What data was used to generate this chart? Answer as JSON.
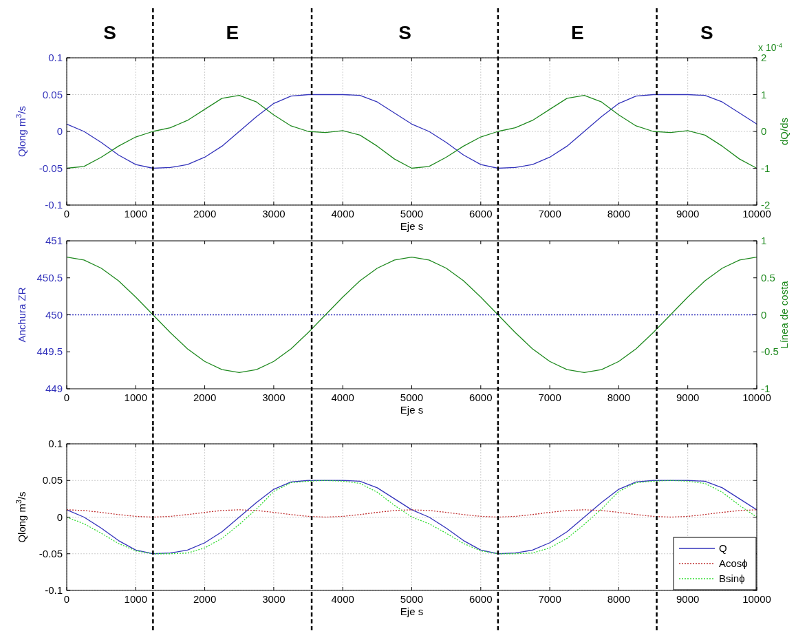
{
  "chart_data": [
    {
      "type": "line",
      "xlabel": "Eje s",
      "ylabel": "Qlong m$^{3}$/s",
      "y2label": "dQ/ds",
      "xlim": [
        0,
        10000
      ],
      "xticks": [
        0,
        1000,
        2000,
        3000,
        4000,
        5000,
        6000,
        7000,
        8000,
        9000,
        10000
      ],
      "ylim": [
        -0.1,
        0.1
      ],
      "yticks": [
        -0.1,
        -0.05,
        0,
        0.05,
        0.1
      ],
      "y2lim": [
        -2,
        2
      ],
      "y2ticks": [
        -2,
        -1,
        0,
        1,
        2
      ],
      "grid": true,
      "annotations": [
        "S",
        "E",
        "S",
        "E",
        "S",
        "x 10$^{-4}$"
      ],
      "ref_lines": [
        {
          "axis": "x",
          "value": 1250,
          "color": "#000000",
          "line_style": "dashed"
        },
        {
          "axis": "x",
          "value": 3550,
          "color": "#000000",
          "line_style": "dashed"
        },
        {
          "axis": "x",
          "value": 6250,
          "color": "#000000",
          "line_style": "dashed"
        },
        {
          "axis": "x",
          "value": 8550,
          "color": "#000000",
          "line_style": "dashed"
        }
      ],
      "x": [
        0,
        250,
        500,
        750,
        1000,
        1250,
        1500,
        1750,
        2000,
        2250,
        2500,
        2750,
        3000,
        3250,
        3500,
        3750,
        4000,
        4250,
        4500,
        4750,
        5000,
        5250,
        5500,
        5750,
        6000,
        6250,
        6500,
        6750,
        7000,
        7250,
        7500,
        7750,
        8000,
        8250,
        8500,
        8750,
        9000,
        9250,
        9500,
        9750,
        10000
      ],
      "series": [
        {
          "color": "#3333bb",
          "values": [
            0.01,
            0,
            -0.015,
            -0.032,
            -0.045,
            -0.05,
            -0.049,
            -0.045,
            -0.035,
            -0.02,
            0,
            0.02,
            0.038,
            0.048,
            0.05,
            0.05,
            0.05,
            0.049,
            0.04,
            0.025,
            0.01,
            0,
            -0.015,
            -0.032,
            -0.045,
            -0.05,
            -0.049,
            -0.045,
            -0.035,
            -0.02,
            0,
            0.02,
            0.038,
            0.048,
            0.05,
            0.05,
            0.05,
            0.049,
            0.04,
            0.025,
            0.01
          ]
        },
        {
          "color": "#208a20",
          "axis": "y2",
          "values": [
            -1,
            -0.95,
            -0.7,
            -0.4,
            -0.15,
            0,
            0.1,
            0.3,
            0.6,
            0.9,
            0.98,
            0.8,
            0.45,
            0.15,
            0,
            -0.03,
            0.02,
            -0.1,
            -0.4,
            -0.75,
            -1,
            -0.95,
            -0.7,
            -0.4,
            -0.15,
            0,
            0.1,
            0.3,
            0.6,
            0.9,
            0.98,
            0.8,
            0.45,
            0.15,
            0,
            -0.03,
            0.02,
            -0.1,
            -0.4,
            -0.75,
            -1
          ]
        }
      ]
    },
    {
      "type": "line",
      "xlabel": "Eje s",
      "ylabel": "Anchura ZR",
      "y2label": "Línea de costa",
      "xlim": [
        0,
        10000
      ],
      "xticks": [
        0,
        1000,
        2000,
        3000,
        4000,
        5000,
        6000,
        7000,
        8000,
        9000,
        10000
      ],
      "ylim": [
        449,
        451
      ],
      "yticks": [
        449,
        449.5,
        450,
        450.5,
        451
      ],
      "y2lim": [
        -1,
        1
      ],
      "y2ticks": [
        -1,
        -0.5,
        0,
        0.5,
        1
      ],
      "grid": false,
      "ref_lines": [
        {
          "axis": "x",
          "value": 1250,
          "color": "#000000",
          "line_style": "dashed"
        },
        {
          "axis": "x",
          "value": 3550,
          "color": "#000000",
          "line_style": "dashed"
        },
        {
          "axis": "x",
          "value": 6250,
          "color": "#000000",
          "line_style": "dashed"
        },
        {
          "axis": "x",
          "value": 8550,
          "color": "#000000",
          "line_style": "dashed"
        }
      ],
      "series": [
        {
          "color": "#3333bb",
          "line_style": "dotted",
          "x": [
            0,
            10000
          ],
          "values": [
            450,
            450
          ]
        },
        {
          "color": "#208a20",
          "axis": "y2",
          "x": [
            0,
            250,
            500,
            750,
            1000,
            1250,
            1500,
            1750,
            2000,
            2250,
            2500,
            2750,
            3000,
            3250,
            3500,
            3750,
            4000,
            4250,
            4500,
            4750,
            5000,
            5250,
            5500,
            5750,
            6000,
            6250,
            6500,
            6750,
            7000,
            7250,
            7500,
            7750,
            8000,
            8250,
            8500,
            8750,
            9000,
            9250,
            9500,
            9750,
            10000
          ],
          "values": [
            0.78,
            0.74,
            0.63,
            0.46,
            0.24,
            0,
            -0.24,
            -0.46,
            -0.63,
            -0.74,
            -0.78,
            -0.74,
            -0.63,
            -0.46,
            -0.24,
            0,
            0.24,
            0.46,
            0.63,
            0.74,
            0.78,
            0.74,
            0.63,
            0.46,
            0.24,
            0,
            -0.24,
            -0.46,
            -0.63,
            -0.74,
            -0.78,
            -0.74,
            -0.63,
            -0.46,
            -0.24,
            0,
            0.24,
            0.46,
            0.63,
            0.74,
            0.78
          ]
        }
      ]
    },
    {
      "type": "line",
      "xlabel": "Eje s",
      "ylabel": "Qlong m$^{3}$/s",
      "xlim": [
        0,
        10000
      ],
      "xticks": [
        0,
        1000,
        2000,
        3000,
        4000,
        5000,
        6000,
        7000,
        8000,
        9000,
        10000
      ],
      "ylim": [
        -0.1,
        0.1
      ],
      "yticks": [
        -0.1,
        -0.05,
        0,
        0.05,
        0.1
      ],
      "grid": true,
      "legend": "bottom right",
      "ref_lines": [
        {
          "axis": "x",
          "value": 1250,
          "color": "#000000",
          "line_style": "dashed"
        },
        {
          "axis": "x",
          "value": 3550,
          "color": "#000000",
          "line_style": "dashed"
        },
        {
          "axis": "x",
          "value": 6250,
          "color": "#000000",
          "line_style": "dashed"
        },
        {
          "axis": "x",
          "value": 8550,
          "color": "#000000",
          "line_style": "dashed"
        }
      ],
      "x": [
        0,
        250,
        500,
        750,
        1000,
        1250,
        1500,
        1750,
        2000,
        2250,
        2500,
        2750,
        3000,
        3250,
        3500,
        3750,
        4000,
        4250,
        4500,
        4750,
        5000,
        5250,
        5500,
        5750,
        6000,
        6250,
        6500,
        6750,
        7000,
        7250,
        7500,
        7750,
        8000,
        8250,
        8500,
        8750,
        9000,
        9250,
        9500,
        9750,
        10000
      ],
      "series": [
        {
          "name": "Q",
          "color": "#3333bb",
          "values": [
            0.01,
            0,
            -0.015,
            -0.032,
            -0.045,
            -0.05,
            -0.049,
            -0.045,
            -0.035,
            -0.02,
            0,
            0.02,
            0.038,
            0.048,
            0.05,
            0.05,
            0.05,
            0.049,
            0.04,
            0.025,
            0.01,
            0,
            -0.015,
            -0.032,
            -0.045,
            -0.05,
            -0.049,
            -0.045,
            -0.035,
            -0.02,
            0,
            0.02,
            0.038,
            0.048,
            0.05,
            0.05,
            0.05,
            0.049,
            0.04,
            0.025,
            0.01
          ]
        },
        {
          "name": "Acosϕ",
          "color": "#c03030",
          "line_style": "dotted",
          "values": [
            0.01,
            0.009,
            0.0065,
            0.0035,
            0.001,
            0,
            0.001,
            0.0035,
            0.0065,
            0.009,
            0.01,
            0.009,
            0.0065,
            0.0035,
            0.001,
            0,
            0.001,
            0.0035,
            0.0065,
            0.009,
            0.01,
            0.009,
            0.0065,
            0.0035,
            0.001,
            0,
            0.001,
            0.0035,
            0.0065,
            0.009,
            0.01,
            0.009,
            0.0065,
            0.0035,
            0.001,
            0,
            0.001,
            0.0035,
            0.0065,
            0.009,
            0.01
          ]
        },
        {
          "name": "Bsinϕ",
          "color": "#33dd33",
          "line_style": "dotted",
          "values": [
            0,
            -0.009,
            -0.022,
            -0.036,
            -0.046,
            -0.05,
            -0.05,
            -0.049,
            -0.042,
            -0.029,
            -0.01,
            0.011,
            0.035,
            0.047,
            0.049,
            0.05,
            0.049,
            0.046,
            0.034,
            0.016,
            0,
            -0.009,
            -0.022,
            -0.036,
            -0.046,
            -0.05,
            -0.05,
            -0.049,
            -0.042,
            -0.029,
            -0.01,
            0.011,
            0.035,
            0.047,
            0.049,
            0.05,
            0.049,
            0.046,
            0.034,
            0.016,
            0
          ]
        }
      ]
    }
  ]
}
